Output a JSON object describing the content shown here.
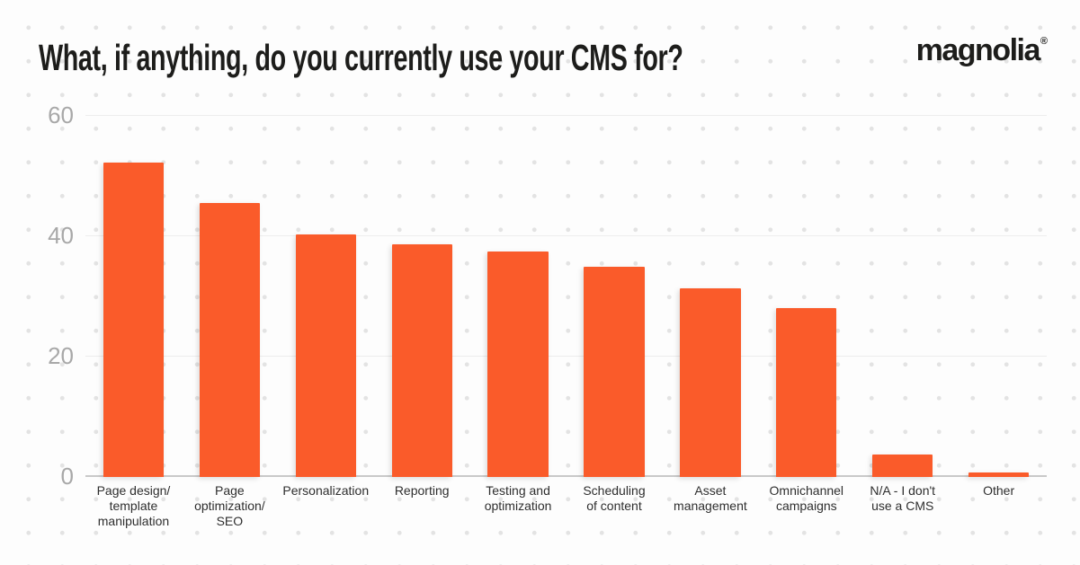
{
  "header": {
    "title": "What, if anything, do you currently use your CMS for?",
    "logo": {
      "text": "magnolia",
      "registered_mark": "®"
    }
  },
  "chart_data": {
    "type": "bar",
    "title": "What, if anything, do you currently use your CMS for?",
    "categories": [
      "Page design/ template manipulation",
      "Page optimization/ SEO",
      "Personalization",
      "Reporting",
      "Testing and optimization",
      "Scheduling of content",
      "Asset management",
      "Omnichannel campaigns",
      "N/A - I don't use a CMS",
      "Other"
    ],
    "category_label_lines": [
      [
        "Page design/",
        "template",
        "manipulation"
      ],
      [
        "Page",
        "optimization/",
        "SEO"
      ],
      [
        "Personalization"
      ],
      [
        "Reporting"
      ],
      [
        "Testing and",
        "optimization"
      ],
      [
        "Scheduling",
        "of content"
      ],
      [
        "Asset",
        "management"
      ],
      [
        "Omnichannel",
        "campaigns"
      ],
      [
        "N/A - I don't",
        "use a CMS"
      ],
      [
        "Other"
      ]
    ],
    "values": [
      52.2,
      45.5,
      40.3,
      38.7,
      37.5,
      34.9,
      31.3,
      28.1,
      3.8,
      0.7
    ],
    "xlabel": "",
    "ylabel": "",
    "ylim": [
      0,
      60
    ],
    "yticks": [
      0,
      20,
      40,
      60
    ],
    "grid": true,
    "legend": false,
    "bar_color": "#fa5b2a"
  },
  "colors": {
    "bar": "#fa5b2a",
    "title_text": "#1d1d1b",
    "axis_tick_label": "#a8a8a8",
    "category_label": "#2e2e2e",
    "gridline": "#ededed",
    "baseline": "#c9c9c9",
    "background": "#fdfdfd",
    "background_dot": "#e3e3e3"
  }
}
